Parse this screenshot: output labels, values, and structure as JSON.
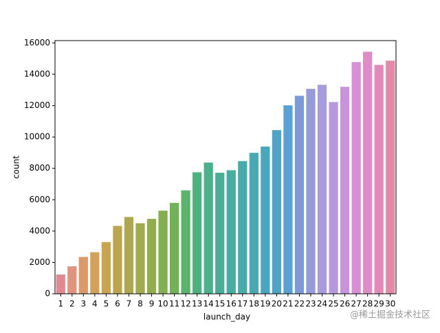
{
  "chart_data": {
    "type": "bar",
    "xlabel": "launch_day",
    "ylabel": "count",
    "categories": [
      "1",
      "2",
      "3",
      "4",
      "5",
      "6",
      "7",
      "8",
      "9",
      "10",
      "11",
      "12",
      "13",
      "14",
      "15",
      "16",
      "17",
      "18",
      "19",
      "20",
      "21",
      "22",
      "23",
      "24",
      "25",
      "26",
      "27",
      "28",
      "29",
      "30"
    ],
    "values": [
      1230,
      1750,
      2350,
      2650,
      3300,
      4330,
      4900,
      4500,
      4780,
      5300,
      5800,
      6600,
      7750,
      8370,
      7720,
      7880,
      8460,
      8990,
      9390,
      10440,
      12020,
      12630,
      13070,
      13330,
      12230,
      13200,
      14780,
      15440,
      14600,
      14870
    ],
    "colors": [
      "#e1898f",
      "#e0937d",
      "#dd9968",
      "#d5a05a",
      "#c9a550",
      "#bba64e",
      "#ada84e",
      "#a0ab4d",
      "#92ad4e",
      "#82b050",
      "#6fb357",
      "#59b56a",
      "#4db37e",
      "#4ab18b",
      "#48af96",
      "#47ada0",
      "#46aba9",
      "#47a9b3",
      "#49a7bd",
      "#4da4c8",
      "#59a0d4",
      "#7b9ad9",
      "#949ada",
      "#a69bdb",
      "#b898dc",
      "#c993dc",
      "#d88fd6",
      "#e08cc8",
      "#e38bb8",
      "#e48aa8"
    ],
    "ylim": [
      0,
      16150
    ],
    "yticks": [
      0,
      2000,
      4000,
      6000,
      8000,
      10000,
      12000,
      14000,
      16000
    ],
    "watermark": "@稀土掘金技术社区"
  }
}
